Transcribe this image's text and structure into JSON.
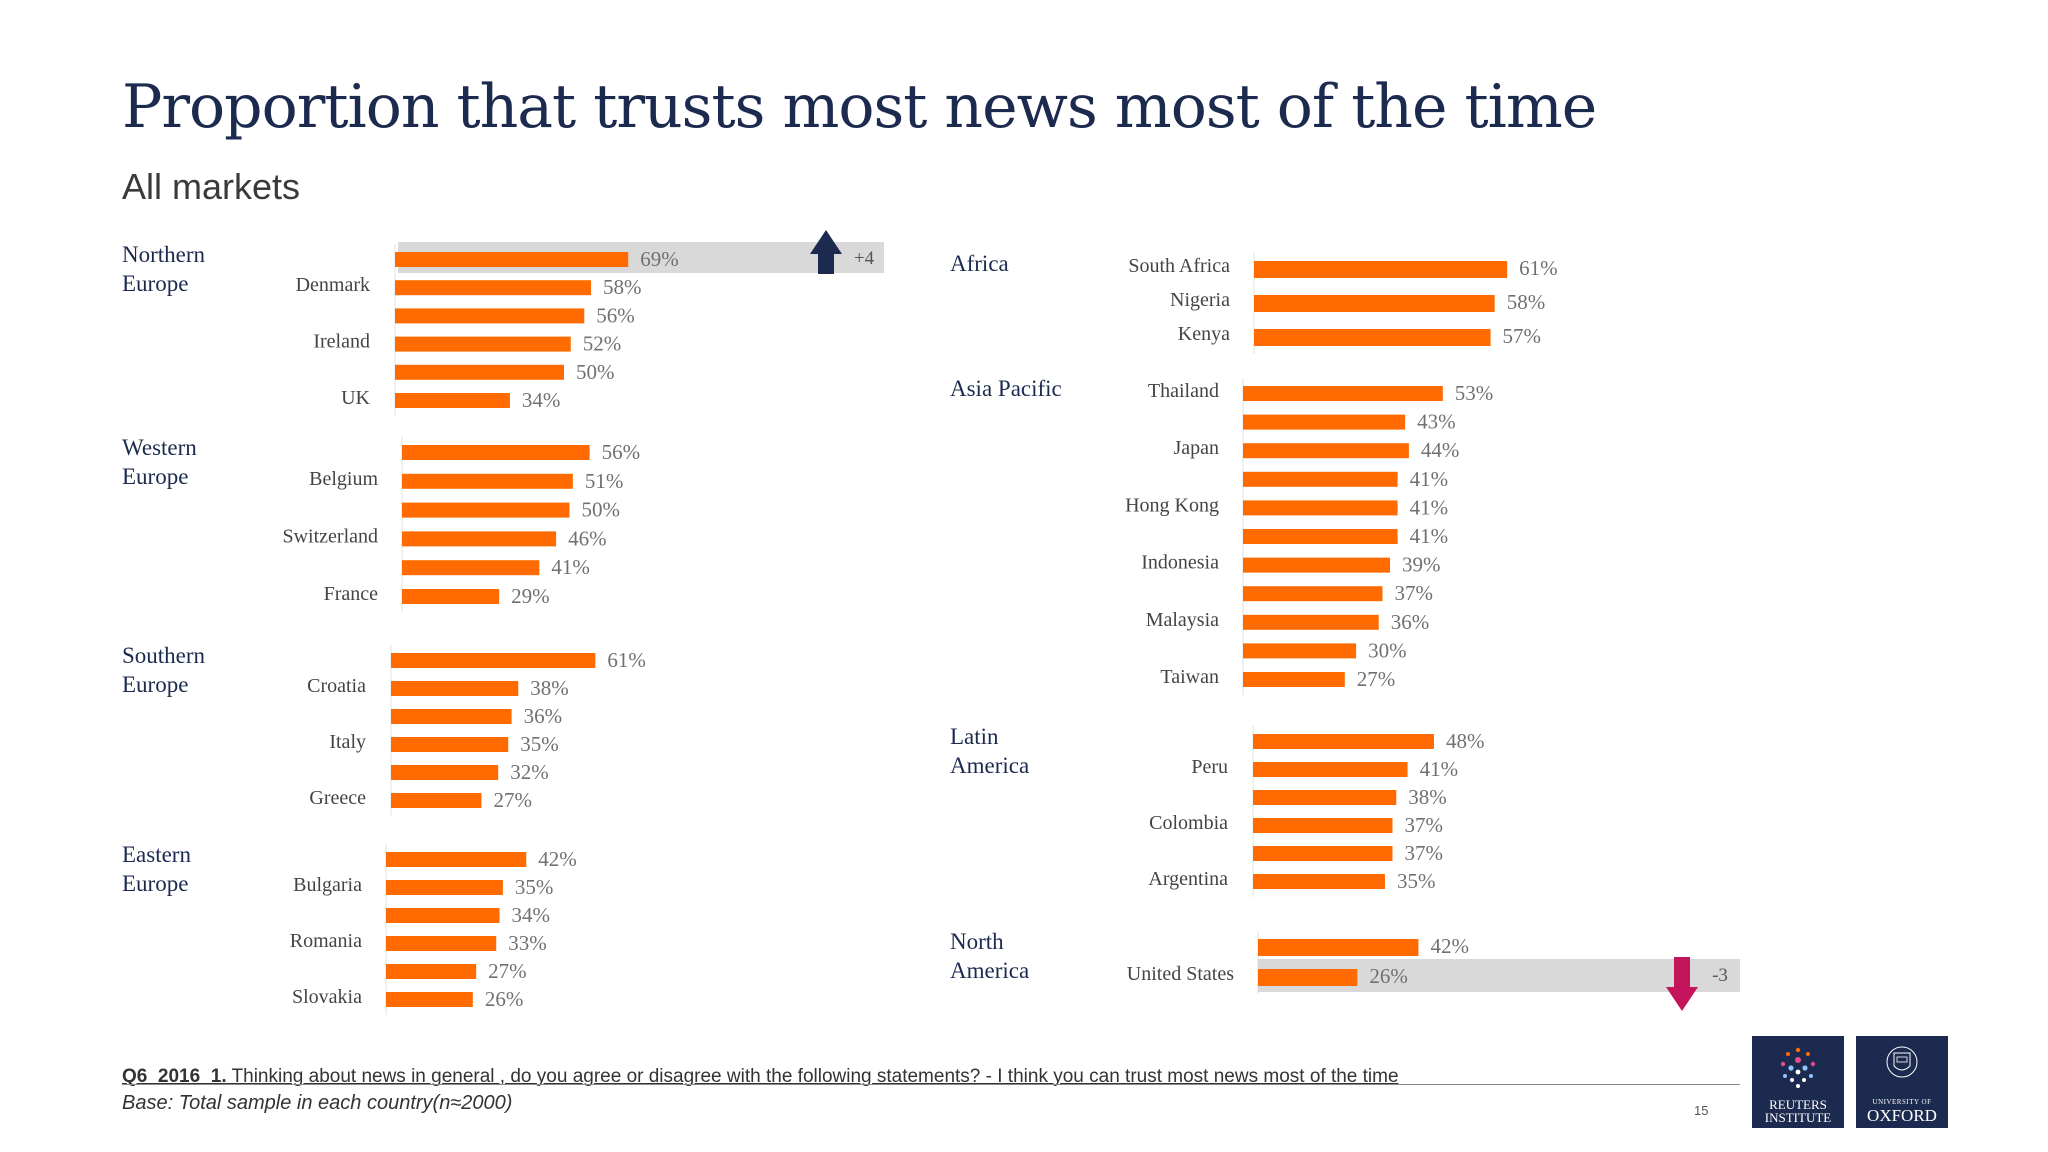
{
  "header": {
    "title": "Proportion that trusts most news most of the time",
    "subtitle": "All markets"
  },
  "footer": {
    "question_id": "Q6_2016_1.",
    "question_text": " Thinking about news in general , do you agree or disagree with the following statements? - I think you can trust most news most of the time",
    "base": "Base: Total sample in each country(n≈2000)",
    "page_number": "15"
  },
  "logos": {
    "reuters": [
      "REUTERS",
      "INSTITUTE"
    ],
    "oxford_small": "UNIVERSITY OF",
    "oxford_big": "OXFORD"
  },
  "colors": {
    "bar": "#ff6b00",
    "highlight_band": "#d9d9d9",
    "up_arrow": "#1b2a4e",
    "down_arrow": "#c4155c",
    "text_dark": "#1b2a4e"
  },
  "chart_data": {
    "type": "bar",
    "orientation": "horizontal",
    "title": "Proportion that trusts most news most of the time",
    "subtitle": "All markets",
    "value_unit": "%",
    "value_max": 100,
    "groups": [
      {
        "region": [
          "Northern",
          "Europe"
        ],
        "column": "left",
        "bars": [
          {
            "label": "",
            "value": 69,
            "highlight": true,
            "change": "+4",
            "direction": "up"
          },
          {
            "label": "Denmark",
            "value": 58
          },
          {
            "label": "",
            "value": 56
          },
          {
            "label": "Ireland",
            "value": 52
          },
          {
            "label": "",
            "value": 50
          },
          {
            "label": "UK",
            "value": 34
          }
        ]
      },
      {
        "region": [
          "Western",
          "Europe"
        ],
        "column": "left",
        "bars": [
          {
            "label": "",
            "value": 56
          },
          {
            "label": "Belgium",
            "value": 51
          },
          {
            "label": "",
            "value": 50
          },
          {
            "label": "Switzerland",
            "value": 46
          },
          {
            "label": "",
            "value": 41
          },
          {
            "label": "France",
            "value": 29
          }
        ]
      },
      {
        "region": [
          "Southern",
          "Europe"
        ],
        "column": "left",
        "bars": [
          {
            "label": "",
            "value": 61
          },
          {
            "label": "Croatia",
            "value": 38
          },
          {
            "label": "",
            "value": 36
          },
          {
            "label": "Italy",
            "value": 35
          },
          {
            "label": "",
            "value": 32
          },
          {
            "label": "Greece",
            "value": 27
          }
        ]
      },
      {
        "region": [
          "Eastern",
          "Europe"
        ],
        "column": "left",
        "bars": [
          {
            "label": "",
            "value": 42
          },
          {
            "label": "Bulgaria",
            "value": 35
          },
          {
            "label": "",
            "value": 34
          },
          {
            "label": "Romania",
            "value": 33
          },
          {
            "label": "",
            "value": 27
          },
          {
            "label": "Slovakia",
            "value": 26
          }
        ]
      },
      {
        "region": [
          "Africa"
        ],
        "column": "right",
        "bars": [
          {
            "label": "South Africa",
            "value": 61
          },
          {
            "label": "Nigeria",
            "value": 58
          },
          {
            "label": "Kenya",
            "value": 57
          }
        ]
      },
      {
        "region": [
          "Asia Pacific"
        ],
        "column": "right",
        "bars": [
          {
            "label": "Thailand",
            "value": 53
          },
          {
            "label": "",
            "value": 43
          },
          {
            "label": "Japan",
            "value": 44
          },
          {
            "label": "",
            "value": 41
          },
          {
            "label": "Hong Kong",
            "value": 41
          },
          {
            "label": "",
            "value": 41
          },
          {
            "label": "Indonesia",
            "value": 39
          },
          {
            "label": "",
            "value": 37
          },
          {
            "label": "Malaysia",
            "value": 36
          },
          {
            "label": "",
            "value": 30
          },
          {
            "label": "Taiwan",
            "value": 27
          }
        ]
      },
      {
        "region": [
          "Latin",
          "America"
        ],
        "column": "right",
        "bars": [
          {
            "label": "",
            "value": 48
          },
          {
            "label": "Peru",
            "value": 41
          },
          {
            "label": "",
            "value": 38
          },
          {
            "label": "Colombia",
            "value": 37
          },
          {
            "label": "",
            "value": 37
          },
          {
            "label": "Argentina",
            "value": 35
          }
        ]
      },
      {
        "region": [
          "North",
          "America"
        ],
        "column": "right",
        "bars": [
          {
            "label": "",
            "value": 42
          },
          {
            "label": "United States",
            "value": 26,
            "highlight": true,
            "change": "-3",
            "direction": "down"
          }
        ]
      }
    ]
  }
}
